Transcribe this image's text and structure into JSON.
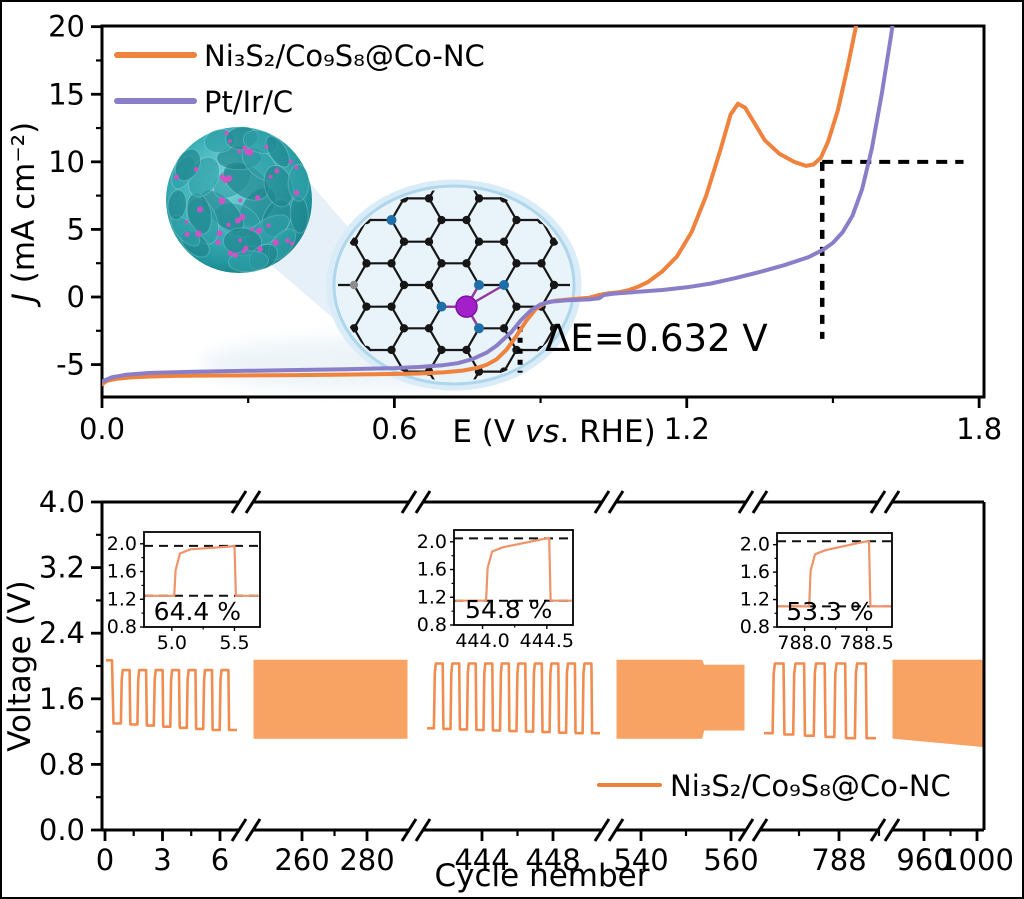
{
  "colors": {
    "catalyst_orange": "#EF823C",
    "reference_purple": "#8B7EC8",
    "cycling_pulse": "#F18C50",
    "cycling_dense": "#F8A263",
    "inset_line": "#EE9468",
    "flower_teal": "#2E9FA7",
    "flower_teal_dark": "#1F858E",
    "flower_dot_pink": "#DC4EC5",
    "graphene_bg": "#E8F3FA",
    "graphene_border": "#AFD7EC",
    "atom_carbon": "#161616",
    "atom_nitrogen": "#1E6FA8",
    "atom_cobalt": "#A21FC9",
    "atom_edge_gray": "#8C8C8C"
  },
  "chart_data": [
    {
      "type": "line",
      "title": "",
      "xlabel": "E (V vs. RHE)",
      "xlabel_pre": "E  (V ",
      "xlabel_italic": "vs",
      "xlabel_post": ". RHE)",
      "ylabel": "J (mA cm⁻²)",
      "ylabel_italic": "J",
      "ylabel_rest": " (mA cm⁻²)",
      "xlim": [
        0.0,
        1.81
      ],
      "ylim": [
        -7.4,
        20.05
      ],
      "xtick_labels": [
        "0.0",
        "0.6",
        "1.2",
        "1.8"
      ],
      "xtick_values": [
        0.0,
        0.6,
        1.2,
        1.8
      ],
      "xtick_minor": [
        0.3,
        0.9,
        1.5
      ],
      "ytick_labels": [
        "20",
        "15",
        "10",
        "5",
        "0",
        "-5"
      ],
      "ytick_values": [
        20,
        15,
        10,
        5,
        0,
        -5
      ],
      "ytick_minor": [
        17.5,
        12.5,
        7.5,
        2.5,
        -2.5
      ],
      "legend_position": "upper-left",
      "grid": false,
      "annotation": {
        "text": "ΔE=0.632 V"
      },
      "guides": {
        "dashed_h": {
          "y": 10,
          "x1": 1.478,
          "x2": 1.768
        },
        "dashed_v": {
          "x": 1.478,
          "y1": -3.1,
          "y2": 10
        },
        "dotted_v": {
          "x": 0.858,
          "y1": -5.6,
          "y2": -2.2
        }
      },
      "series": [
        {
          "name": "Ni₃S₂/Co₉S₈@Co-NC",
          "color": "#EF823C",
          "points": [
            [
              0.0,
              -6.45
            ],
            [
              0.01,
              -6.2
            ],
            [
              0.03,
              -6.05
            ],
            [
              0.06,
              -5.95
            ],
            [
              0.1,
              -5.88
            ],
            [
              0.15,
              -5.84
            ],
            [
              0.2,
              -5.82
            ],
            [
              0.3,
              -5.8
            ],
            [
              0.4,
              -5.78
            ],
            [
              0.5,
              -5.74
            ],
            [
              0.6,
              -5.7
            ],
            [
              0.65,
              -5.66
            ],
            [
              0.7,
              -5.58
            ],
            [
              0.74,
              -5.45
            ],
            [
              0.77,
              -5.25
            ],
            [
              0.79,
              -5.0
            ],
            [
              0.81,
              -4.6
            ],
            [
              0.83,
              -3.9
            ],
            [
              0.85,
              -2.9
            ],
            [
              0.87,
              -1.8
            ],
            [
              0.89,
              -0.9
            ],
            [
              0.91,
              -0.45
            ],
            [
              0.93,
              -0.28
            ],
            [
              0.96,
              -0.18
            ],
            [
              1.0,
              -0.05
            ],
            [
              1.02,
              0.15
            ],
            [
              1.04,
              0.28
            ],
            [
              1.06,
              0.35
            ],
            [
              1.08,
              0.5
            ],
            [
              1.1,
              0.75
            ],
            [
              1.12,
              1.1
            ],
            [
              1.15,
              1.9
            ],
            [
              1.18,
              3.0
            ],
            [
              1.21,
              4.8
            ],
            [
              1.24,
              7.5
            ],
            [
              1.27,
              11.0
            ],
            [
              1.29,
              13.5
            ],
            [
              1.305,
              14.3
            ],
            [
              1.32,
              14.0
            ],
            [
              1.34,
              12.8
            ],
            [
              1.36,
              11.6
            ],
            [
              1.39,
              10.6
            ],
            [
              1.42,
              10.0
            ],
            [
              1.445,
              9.7
            ],
            [
              1.46,
              9.8
            ],
            [
              1.475,
              10.3
            ],
            [
              1.49,
              11.5
            ],
            [
              1.51,
              13.8
            ],
            [
              1.53,
              17.0
            ],
            [
              1.55,
              20.5
            ],
            [
              1.56,
              22.0
            ]
          ]
        },
        {
          "name": "Pt/Ir/C",
          "color": "#8B7EC8",
          "points": [
            [
              0.0,
              -6.25
            ],
            [
              0.02,
              -5.95
            ],
            [
              0.05,
              -5.75
            ],
            [
              0.1,
              -5.62
            ],
            [
              0.2,
              -5.52
            ],
            [
              0.3,
              -5.46
            ],
            [
              0.4,
              -5.4
            ],
            [
              0.5,
              -5.34
            ],
            [
              0.6,
              -5.26
            ],
            [
              0.65,
              -5.18
            ],
            [
              0.7,
              -5.05
            ],
            [
              0.73,
              -4.9
            ],
            [
              0.76,
              -4.6
            ],
            [
              0.79,
              -4.1
            ],
            [
              0.81,
              -3.6
            ],
            [
              0.84,
              -2.6
            ],
            [
              0.86,
              -1.7
            ],
            [
              0.88,
              -1.0
            ],
            [
              0.9,
              -0.55
            ],
            [
              0.92,
              -0.35
            ],
            [
              0.95,
              -0.25
            ],
            [
              1.0,
              -0.18
            ],
            [
              1.02,
              -0.1
            ],
            [
              1.03,
              0.15
            ],
            [
              1.05,
              0.25
            ],
            [
              1.1,
              0.38
            ],
            [
              1.15,
              0.52
            ],
            [
              1.2,
              0.72
            ],
            [
              1.25,
              1.0
            ],
            [
              1.3,
              1.4
            ],
            [
              1.35,
              1.85
            ],
            [
              1.4,
              2.35
            ],
            [
              1.45,
              2.95
            ],
            [
              1.48,
              3.5
            ],
            [
              1.5,
              4.0
            ],
            [
              1.52,
              4.8
            ],
            [
              1.54,
              6.0
            ],
            [
              1.56,
              8.0
            ],
            [
              1.58,
              11.0
            ],
            [
              1.6,
              15.0
            ],
            [
              1.62,
              19.5
            ],
            [
              1.63,
              22.0
            ]
          ]
        }
      ]
    },
    {
      "type": "line",
      "broken_x_axis": true,
      "xlabel": "Cycle nember",
      "ylabel": "Voltage (V)",
      "ylim": [
        0.0,
        4.0
      ],
      "ytick_labels": [
        "4.0",
        "3.2",
        "2.4",
        "1.6",
        "0.8",
        "0.0"
      ],
      "ytick_values": [
        4.0,
        3.2,
        2.4,
        1.6,
        0.8,
        0.0
      ],
      "ytick_minor": [
        3.6,
        2.8,
        2.0,
        1.2,
        0.4
      ],
      "series_name": "Ni₃S₂/Co₉S₈@Co-NC",
      "series_color": "#EF823C",
      "segments": [
        {
          "tick_labels": [
            "0",
            "3",
            "6"
          ],
          "style": "pulses",
          "pulses": 7,
          "v_start": 2.07,
          "v_high": 1.95,
          "v_low": 1.3,
          "v_low_end": 1.22
        },
        {
          "tick_labels": [
            "260",
            "280"
          ],
          "style": "dense",
          "v_high": 2.07,
          "v_low": 1.12
        },
        {
          "tick_labels": [
            "444",
            "448"
          ],
          "style": "pulses",
          "pulses": 10,
          "v_high": 2.03,
          "v_low": 1.24,
          "v_low_end": 1.18
        },
        {
          "tick_labels": [
            "540",
            "560"
          ],
          "style": "dense",
          "v_high": 2.07,
          "v_low": 1.12,
          "step_at": 0.66,
          "v_high2": 2.01,
          "v_low2": 1.22
        },
        {
          "tick_labels": [
            "788"
          ],
          "style": "pulses",
          "pulses": 5,
          "v_high": 2.03,
          "v_low": 1.18,
          "v_low_end": 1.12
        },
        {
          "tick_labels": [
            "960",
            "1000"
          ],
          "style": "dense",
          "v_high": 2.07,
          "v_low": 1.12,
          "v_low2": 1.02
        }
      ],
      "insets": [
        {
          "efficiency": "64.4 %",
          "ytick_labels": [
            "2.0",
            "1.6",
            "1.2",
            "0.8"
          ],
          "ytick_values": [
            2.0,
            1.6,
            1.2,
            0.8
          ],
          "xtick_labels": [
            "5.0",
            "5.5"
          ],
          "v_top": 1.97,
          "v_bottom": 1.25,
          "rise": 0.26,
          "drop": 0.78
        },
        {
          "efficiency": "54.8 %",
          "ytick_labels": [
            "2.0",
            "1.6",
            "1.2",
            "0.8"
          ],
          "ytick_values": [
            2.0,
            1.6,
            1.2,
            0.8
          ],
          "xtick_labels": [
            "444.0",
            "444.5"
          ],
          "v_top": 2.05,
          "v_bottom": 1.15,
          "rise": 0.27,
          "drop": 0.8
        },
        {
          "efficiency": "53.3 %",
          "ytick_labels": [
            "2.0",
            "1.6",
            "1.2",
            "0.8"
          ],
          "ytick_values": [
            2.0,
            1.6,
            1.2,
            0.8
          ],
          "xtick_labels": [
            "788.0",
            "788.5"
          ],
          "v_top": 2.05,
          "v_bottom": 1.1,
          "rise": 0.28,
          "drop": 0.8
        }
      ]
    }
  ]
}
